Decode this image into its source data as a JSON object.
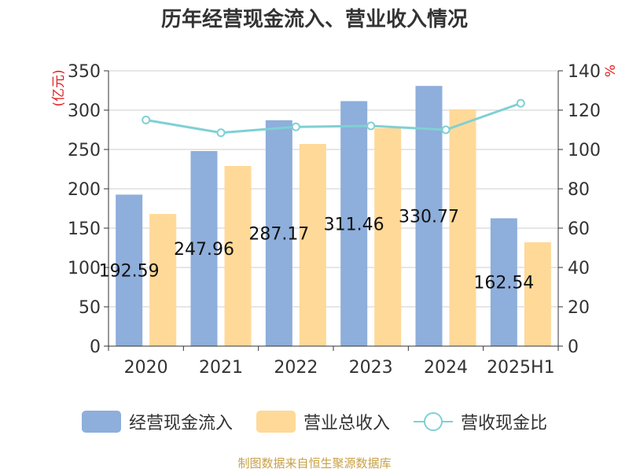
{
  "title": "历年经营现金流入、营业收入情况",
  "source": "制图数据来自恒生聚源数据库",
  "colors": {
    "series1": "#8eaedb",
    "series2": "#ffd998",
    "series3": "#7fd0d4",
    "axis_unit": "#e02020",
    "source": "#c8a046"
  },
  "chart_data": {
    "type": "bar",
    "title": "历年经营现金流入、营业收入情况",
    "categories": [
      "2020",
      "2021",
      "2022",
      "2023",
      "2024",
      "2025H1"
    ],
    "y_left": {
      "unit": "(亿元)",
      "ticks": [
        0,
        50,
        100,
        150,
        200,
        250,
        300,
        350
      ],
      "lim": [
        0,
        350
      ]
    },
    "y_right": {
      "unit": "%",
      "ticks": [
        0,
        20,
        40,
        60,
        80,
        100,
        120,
        140
      ],
      "lim": [
        0,
        140
      ]
    },
    "series": [
      {
        "name": "经营现金流入",
        "type": "bar",
        "axis": "left",
        "values": [
          192.59,
          247.96,
          287.17,
          311.46,
          330.77,
          162.54
        ],
        "labels": [
          "192.59",
          "247.96",
          "287.17",
          "311.46",
          "330.77",
          "162.54"
        ]
      },
      {
        "name": "营业总收入",
        "type": "bar",
        "axis": "left",
        "values": [
          168,
          229,
          257,
          277,
          301,
          132
        ]
      },
      {
        "name": "营收现金比",
        "type": "line",
        "axis": "right",
        "values": [
          115,
          108.5,
          111.5,
          112,
          110,
          123.5
        ]
      }
    ],
    "grid": true,
    "legend": "bottom"
  }
}
